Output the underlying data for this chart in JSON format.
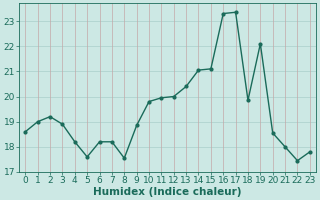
{
  "x": [
    0,
    1,
    2,
    3,
    4,
    5,
    6,
    7,
    8,
    9,
    10,
    11,
    12,
    13,
    14,
    15,
    16,
    17,
    18,
    19,
    20,
    21,
    22,
    23
  ],
  "y": [
    18.6,
    19.0,
    19.2,
    18.9,
    18.2,
    17.6,
    18.2,
    18.2,
    17.55,
    18.85,
    19.8,
    19.95,
    20.0,
    20.4,
    21.05,
    21.1,
    23.3,
    23.35,
    19.85,
    22.1,
    18.55,
    18.0,
    17.45,
    17.8
  ],
  "line_color": "#1a6b5a",
  "marker": ".",
  "marker_size": 4,
  "linewidth": 1.0,
  "xlabel": "Humidex (Indice chaleur)",
  "xlim": [
    -0.5,
    23.5
  ],
  "ylim": [
    17,
    23.7
  ],
  "yticks": [
    17,
    18,
    19,
    20,
    21,
    22,
    23
  ],
  "xticks": [
    0,
    1,
    2,
    3,
    4,
    5,
    6,
    7,
    8,
    9,
    10,
    11,
    12,
    13,
    14,
    15,
    16,
    17,
    18,
    19,
    20,
    21,
    22,
    23
  ],
  "bg_color": "#cce8e4",
  "hgrid_color": "#aacfcb",
  "vgrid_color": "#c4a8a8",
  "label_color": "#1a6b5a",
  "xlabel_fontsize": 7.5,
  "tick_fontsize": 6.5
}
